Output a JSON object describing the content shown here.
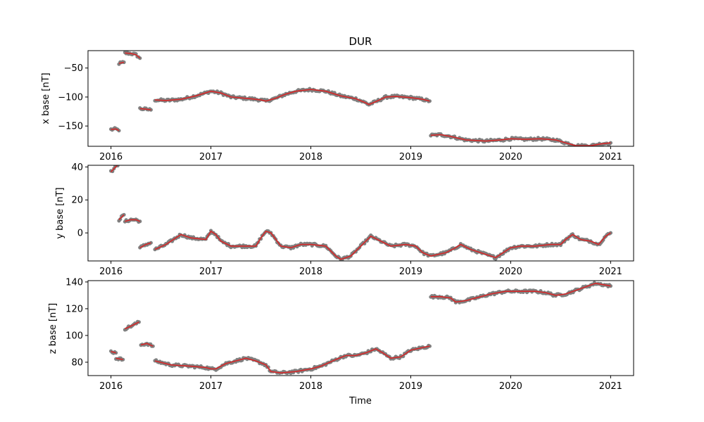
{
  "chart_data": {
    "type": "scatter",
    "title": "DUR",
    "xlabel": "Time",
    "x_ticks": [
      "2016",
      "2017",
      "2018",
      "2019",
      "2020",
      "2021"
    ],
    "x_tick_values": [
      2016,
      2017,
      2018,
      2019,
      2020,
      2021
    ],
    "xlim": [
      2015.77,
      2021.23
    ],
    "colors": {
      "points": "#808080",
      "line": "#d62728"
    },
    "panels": [
      {
        "id": "x",
        "ylabel": "x base [nT]",
        "ylim": [
          -185,
          -20
        ],
        "y_ticks": [
          -50,
          -100,
          -150
        ],
        "segments": [
          [
            [
              2016.0,
              -156
            ],
            [
              2016.05,
              -155
            ],
            [
              2016.08,
              -158
            ]
          ],
          [
            [
              2016.08,
              -42
            ],
            [
              2016.13,
              -40
            ]
          ],
          [
            [
              2016.14,
              -24
            ],
            [
              2016.2,
              -25
            ],
            [
              2016.25,
              -27
            ],
            [
              2016.29,
              -33
            ]
          ],
          [
            [
              2016.29,
              -120
            ],
            [
              2016.35,
              -121
            ],
            [
              2016.4,
              -122
            ]
          ],
          [
            [
              2016.44,
              -105
            ],
            [
              2016.55,
              -106
            ],
            [
              2016.7,
              -104
            ],
            [
              2016.85,
              -98
            ],
            [
              2017.0,
              -90
            ],
            [
              2017.1,
              -93
            ],
            [
              2017.2,
              -100
            ],
            [
              2017.4,
              -103
            ],
            [
              2017.5,
              -105
            ],
            [
              2017.55,
              -107
            ],
            [
              2017.65,
              -102
            ],
            [
              2017.75,
              -95
            ],
            [
              2017.85,
              -90
            ],
            [
              2018.0,
              -87
            ],
            [
              2018.15,
              -90
            ],
            [
              2018.3,
              -98
            ],
            [
              2018.45,
              -103
            ],
            [
              2018.55,
              -110
            ],
            [
              2018.58,
              -113
            ],
            [
              2018.65,
              -108
            ],
            [
              2018.75,
              -100
            ],
            [
              2018.85,
              -99
            ],
            [
              2019.0,
              -101
            ],
            [
              2019.12,
              -104
            ],
            [
              2019.19,
              -107
            ]
          ],
          [
            [
              2019.2,
              -166
            ],
            [
              2019.3,
              -165
            ],
            [
              2019.4,
              -168
            ],
            [
              2019.55,
              -174
            ],
            [
              2019.75,
              -176
            ],
            [
              2019.9,
              -174
            ],
            [
              2020.0,
              -172
            ],
            [
              2020.15,
              -173
            ],
            [
              2020.3,
              -172
            ],
            [
              2020.45,
              -174
            ],
            [
              2020.55,
              -179
            ],
            [
              2020.65,
              -184
            ],
            [
              2020.8,
              -184
            ],
            [
              2020.9,
              -181
            ],
            [
              2021.0,
              -179
            ]
          ]
        ]
      },
      {
        "id": "y",
        "ylabel": "y base [nT]",
        "ylim": [
          -17,
          41
        ],
        "y_ticks": [
          40,
          20,
          0
        ],
        "segments": [
          [
            [
              2016.0,
              37
            ],
            [
              2016.03,
              39
            ],
            [
              2016.08,
              42
            ]
          ],
          [
            [
              2016.08,
              8
            ],
            [
              2016.13,
              11
            ]
          ],
          [
            [
              2016.14,
              7
            ],
            [
              2016.2,
              8
            ],
            [
              2016.25,
              8
            ],
            [
              2016.29,
              7
            ]
          ],
          [
            [
              2016.29,
              -9
            ],
            [
              2016.35,
              -7
            ],
            [
              2016.4,
              -6
            ]
          ],
          [
            [
              2016.44,
              -10
            ],
            [
              2016.55,
              -7
            ],
            [
              2016.65,
              -3
            ],
            [
              2016.7,
              -1
            ],
            [
              2016.8,
              -3
            ],
            [
              2016.95,
              -4
            ],
            [
              2017.0,
              1
            ],
            [
              2017.05,
              -1
            ],
            [
              2017.1,
              -5
            ],
            [
              2017.2,
              -8
            ],
            [
              2017.35,
              -8
            ],
            [
              2017.45,
              -8
            ],
            [
              2017.5,
              -3
            ],
            [
              2017.55,
              1
            ],
            [
              2017.6,
              0
            ],
            [
              2017.7,
              -8
            ],
            [
              2017.8,
              -9
            ],
            [
              2017.9,
              -7
            ],
            [
              2018.0,
              -7
            ],
            [
              2018.15,
              -8
            ],
            [
              2018.25,
              -14
            ],
            [
              2018.3,
              -16
            ],
            [
              2018.4,
              -14
            ],
            [
              2018.5,
              -8
            ],
            [
              2018.6,
              -2
            ],
            [
              2018.7,
              -5
            ],
            [
              2018.8,
              -8
            ],
            [
              2018.95,
              -7
            ],
            [
              2019.05,
              -8
            ],
            [
              2019.12,
              -12
            ],
            [
              2019.2,
              -14
            ],
            [
              2019.35,
              -12
            ],
            [
              2019.45,
              -9
            ],
            [
              2019.5,
              -7
            ],
            [
              2019.6,
              -10
            ],
            [
              2019.75,
              -13
            ],
            [
              2019.85,
              -15
            ],
            [
              2019.9,
              -13
            ],
            [
              2020.0,
              -9
            ],
            [
              2020.1,
              -8
            ],
            [
              2020.25,
              -8
            ],
            [
              2020.4,
              -7
            ],
            [
              2020.5,
              -7
            ],
            [
              2020.55,
              -4
            ],
            [
              2020.62,
              -1
            ],
            [
              2020.7,
              -4
            ],
            [
              2020.8,
              -5
            ],
            [
              2020.88,
              -7
            ],
            [
              2020.95,
              -2
            ],
            [
              2021.0,
              0
            ]
          ]
        ]
      },
      {
        "id": "z",
        "ylabel": "z base [nT]",
        "ylim": [
          70,
          141
        ],
        "y_ticks": [
          140,
          120,
          100,
          80
        ],
        "segments": [
          [
            [
              2016.0,
              88
            ],
            [
              2016.05,
              87
            ]
          ],
          [
            [
              2016.05,
              83
            ],
            [
              2016.12,
              82
            ]
          ],
          [
            [
              2016.14,
              105
            ],
            [
              2016.2,
              107
            ],
            [
              2016.28,
              110
            ]
          ],
          [
            [
              2016.3,
              93
            ],
            [
              2016.36,
              94
            ],
            [
              2016.42,
              92
            ]
          ],
          [
            [
              2016.44,
              81
            ],
            [
              2016.6,
              78
            ],
            [
              2016.8,
              77
            ],
            [
              2016.95,
              76
            ],
            [
              2017.0,
              75
            ],
            [
              2017.05,
              75
            ],
            [
              2017.15,
              79
            ],
            [
              2017.25,
              81
            ],
            [
              2017.35,
              83
            ],
            [
              2017.45,
              81
            ],
            [
              2017.55,
              78
            ],
            [
              2017.6,
              73
            ],
            [
              2017.7,
              72
            ],
            [
              2017.85,
              73
            ],
            [
              2018.0,
              75
            ],
            [
              2018.1,
              77
            ],
            [
              2018.25,
              82
            ],
            [
              2018.35,
              85
            ],
            [
              2018.45,
              85
            ],
            [
              2018.55,
              87
            ],
            [
              2018.65,
              90
            ],
            [
              2018.72,
              87
            ],
            [
              2018.8,
              83
            ],
            [
              2018.9,
              84
            ],
            [
              2019.0,
              89
            ],
            [
              2019.12,
              91
            ],
            [
              2019.19,
              92
            ]
          ],
          [
            [
              2019.2,
              129
            ],
            [
              2019.3,
              129
            ],
            [
              2019.4,
              128
            ],
            [
              2019.45,
              125
            ],
            [
              2019.55,
              126
            ],
            [
              2019.65,
              128
            ],
            [
              2019.8,
              131
            ],
            [
              2019.95,
              133
            ],
            [
              2020.1,
              133
            ],
            [
              2020.25,
              133
            ],
            [
              2020.35,
              132
            ],
            [
              2020.45,
              130
            ],
            [
              2020.55,
              131
            ],
            [
              2020.7,
              135
            ],
            [
              2020.85,
              139
            ],
            [
              2021.0,
              137
            ]
          ]
        ]
      }
    ]
  }
}
